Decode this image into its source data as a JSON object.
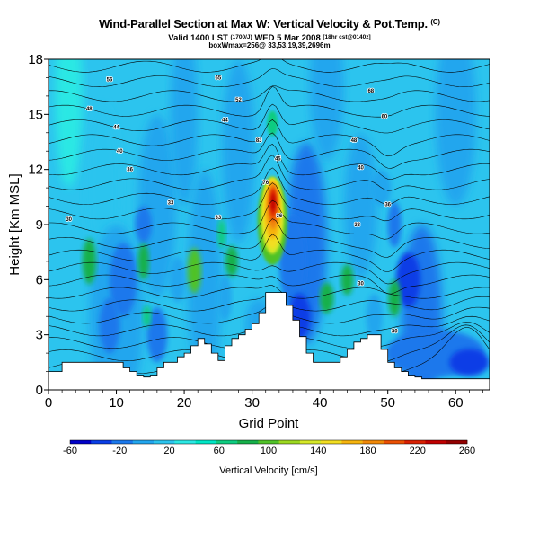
{
  "header": {
    "title": "Wind-Parallel Section at Max W: Vertical Velocity & Pot.Temp.",
    "title_mark": "(C)",
    "subtitle_pre": "Valid 1400 LST",
    "subtitle_small1": "(1700/J)",
    "subtitle_mid": "WED 5 Mar 2008",
    "subtitle_small2": "[18hr cst@0140z]",
    "subtitle2": "boxWmax=256@ 33,53,19,39,2696m"
  },
  "chart_data": {
    "type": "heatmap",
    "xlabel": "Grid Point",
    "ylabel": "Height [Km MSL]",
    "xlim": [
      0,
      65
    ],
    "ylim": [
      0,
      18
    ],
    "xticks": [
      0,
      10,
      20,
      30,
      40,
      50,
      60
    ],
    "yticks": [
      0,
      3,
      6,
      9,
      12,
      15,
      18
    ],
    "colorbar": {
      "label": "Vertical Velocity [cm/s]",
      "min": -60,
      "max": 260,
      "tick_labels": [
        "-60",
        "-20",
        "20",
        "60",
        "100",
        "140",
        "180",
        "220",
        "260"
      ],
      "colors": [
        "#0000c8",
        "#0a3ee6",
        "#1a78ec",
        "#22a6ee",
        "#2cc4ee",
        "#2ce8e4",
        "#00e6c6",
        "#0ecc80",
        "#16b04a",
        "#50c228",
        "#9cd820",
        "#d6e828",
        "#f2de22",
        "#f6b40e",
        "#f08808",
        "#ea5004",
        "#d82002",
        "#c00000",
        "#920000"
      ]
    },
    "terrain_top_km": [
      1.0,
      1.0,
      1.5,
      1.5,
      1.5,
      1.5,
      1.5,
      1.5,
      1.5,
      1.5,
      1.5,
      1.2,
      1.0,
      0.8,
      0.7,
      0.8,
      1.2,
      1.5,
      1.5,
      1.8,
      2.0,
      2.4,
      2.8,
      2.5,
      2.0,
      1.6,
      2.4,
      2.8,
      3.0,
      3.3,
      3.6,
      4.2,
      5.3,
      5.3,
      5.3,
      4.6,
      3.8,
      2.9,
      2.0,
      1.5,
      1.5,
      1.5,
      1.5,
      1.8,
      2.2,
      2.6,
      2.8,
      3.0,
      3.0,
      2.2,
      1.5,
      1.2,
      1.0,
      0.8,
      0.7,
      0.6,
      0.6,
      0.6,
      0.6,
      0.6,
      0.6,
      0.6,
      0.6,
      0.6,
      0.6,
      0.6
    ],
    "max_updraft": {
      "x": 33,
      "z_km": 9.5,
      "value": 256
    },
    "contour_label_values": [
      "30",
      "33",
      "36",
      "39",
      "44",
      "48",
      "52",
      "56",
      "60",
      "65",
      "68",
      "76",
      "83"
    ]
  },
  "contour_labels": [
    {
      "x": 9.0,
      "z": 16.9,
      "t": "56"
    },
    {
      "x": 25.0,
      "z": 17.0,
      "t": "65"
    },
    {
      "x": 47.5,
      "z": 16.3,
      "t": "68"
    },
    {
      "x": 6.0,
      "z": 15.3,
      "t": "48"
    },
    {
      "x": 28.0,
      "z": 15.8,
      "t": "52"
    },
    {
      "x": 49.5,
      "z": 14.9,
      "t": "60"
    },
    {
      "x": 10.0,
      "z": 14.3,
      "t": "44"
    },
    {
      "x": 26.0,
      "z": 14.7,
      "t": "44"
    },
    {
      "x": 31.0,
      "z": 13.6,
      "t": "83"
    },
    {
      "x": 45.0,
      "z": 13.6,
      "t": "48"
    },
    {
      "x": 10.5,
      "z": 13.0,
      "t": "40"
    },
    {
      "x": 33.8,
      "z": 12.6,
      "t": "45"
    },
    {
      "x": 12.0,
      "z": 12.0,
      "t": "36"
    },
    {
      "x": 46.0,
      "z": 12.1,
      "t": "40"
    },
    {
      "x": 32.0,
      "z": 11.3,
      "t": "76"
    },
    {
      "x": 18.0,
      "z": 10.2,
      "t": "33"
    },
    {
      "x": 50.0,
      "z": 10.1,
      "t": "36"
    },
    {
      "x": 3.0,
      "z": 9.3,
      "t": "30"
    },
    {
      "x": 25.0,
      "z": 9.4,
      "t": "33"
    },
    {
      "x": 45.5,
      "z": 9.0,
      "t": "33"
    },
    {
      "x": 34.0,
      "z": 9.5,
      "t": "36"
    },
    {
      "x": 46.0,
      "z": 5.8,
      "t": "30"
    },
    {
      "x": 51.0,
      "z": 3.2,
      "t": "30"
    }
  ]
}
